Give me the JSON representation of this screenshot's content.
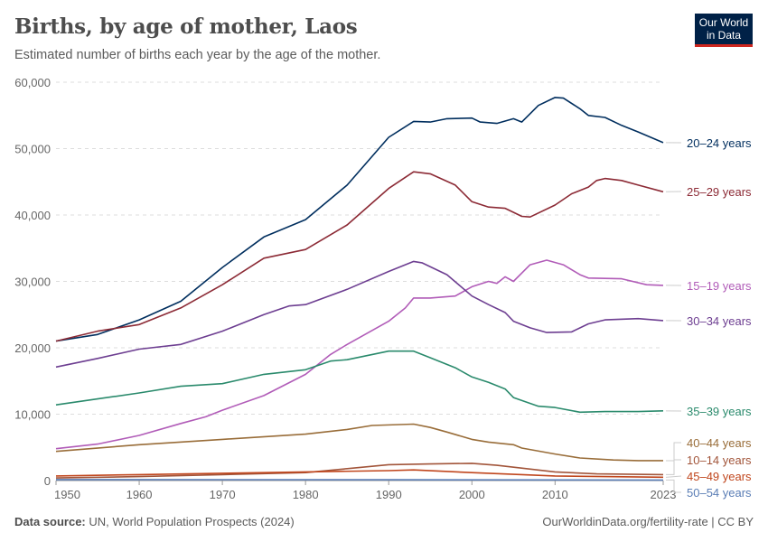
{
  "header": {
    "title": "Births, by age of mother, Laos",
    "subtitle": "Estimated number of births each year by the age of the mother.",
    "logo": "Our World in Data"
  },
  "footer": {
    "source_label": "Data source:",
    "source": "UN, World Population Prospects (2024)",
    "link": "OurWorldinData.org/fertility-rate | CC BY"
  },
  "chart_data": {
    "type": "line",
    "title": "Births, by age of mother, Laos",
    "xlim": [
      1950,
      2023
    ],
    "ylim": [
      0,
      60000
    ],
    "grid": "horizontal dashed",
    "legend": "right end labels",
    "xticks": [
      "1950",
      "1960",
      "1970",
      "1980",
      "1990",
      "2000",
      "2010",
      "2023"
    ],
    "yticks": [
      "0",
      "10,000",
      "20,000",
      "30,000",
      "40,000",
      "50,000",
      "60,000"
    ],
    "series": [
      {
        "name": "20–24 years",
        "color": "#002e5e",
        "points": [
          [
            1950,
            21000
          ],
          [
            1955,
            22000
          ],
          [
            1960,
            24200
          ],
          [
            1965,
            27000
          ],
          [
            1970,
            32100
          ],
          [
            1975,
            36700
          ],
          [
            1980,
            39300
          ],
          [
            1985,
            44500
          ],
          [
            1990,
            51700
          ],
          [
            1993,
            54100
          ],
          [
            1995,
            54000
          ],
          [
            1997,
            54500
          ],
          [
            2000,
            54600
          ],
          [
            2001,
            54000
          ],
          [
            2003,
            53800
          ],
          [
            2005,
            54500
          ],
          [
            2006,
            54000
          ],
          [
            2008,
            56500
          ],
          [
            2010,
            57700
          ],
          [
            2011,
            57600
          ],
          [
            2013,
            56000
          ],
          [
            2014,
            55000
          ],
          [
            2016,
            54700
          ],
          [
            2018,
            53500
          ],
          [
            2020,
            52500
          ],
          [
            2023,
            50900
          ]
        ]
      },
      {
        "name": "25–29 years",
        "color": "#8c2a35",
        "points": [
          [
            1950,
            21000
          ],
          [
            1955,
            22500
          ],
          [
            1960,
            23500
          ],
          [
            1965,
            26000
          ],
          [
            1970,
            29500
          ],
          [
            1975,
            33500
          ],
          [
            1980,
            34800
          ],
          [
            1985,
            38500
          ],
          [
            1990,
            44000
          ],
          [
            1993,
            46500
          ],
          [
            1995,
            46200
          ],
          [
            1998,
            44500
          ],
          [
            2000,
            42000
          ],
          [
            2002,
            41200
          ],
          [
            2004,
            41000
          ],
          [
            2006,
            39800
          ],
          [
            2007,
            39700
          ],
          [
            2010,
            41500
          ],
          [
            2012,
            43200
          ],
          [
            2014,
            44200
          ],
          [
            2015,
            45200
          ],
          [
            2016,
            45500
          ],
          [
            2018,
            45200
          ],
          [
            2020,
            44500
          ],
          [
            2023,
            43500
          ]
        ]
      },
      {
        "name": "15–19 years",
        "color": "#b15cb8",
        "points": [
          [
            1950,
            4800
          ],
          [
            1955,
            5500
          ],
          [
            1960,
            6800
          ],
          [
            1965,
            8600
          ],
          [
            1968,
            9600
          ],
          [
            1970,
            10600
          ],
          [
            1975,
            12800
          ],
          [
            1980,
            16000
          ],
          [
            1983,
            19000
          ],
          [
            1985,
            20500
          ],
          [
            1990,
            24000
          ],
          [
            1992,
            26000
          ],
          [
            1993,
            27500
          ],
          [
            1995,
            27500
          ],
          [
            1998,
            27800
          ],
          [
            2000,
            29200
          ],
          [
            2002,
            30000
          ],
          [
            2003,
            29700
          ],
          [
            2004,
            30700
          ],
          [
            2005,
            30000
          ],
          [
            2007,
            32500
          ],
          [
            2009,
            33200
          ],
          [
            2011,
            32500
          ],
          [
            2013,
            31000
          ],
          [
            2014,
            30500
          ],
          [
            2018,
            30400
          ],
          [
            2021,
            29500
          ],
          [
            2023,
            29400
          ]
        ]
      },
      {
        "name": "30–34 years",
        "color": "#6d3e91",
        "points": [
          [
            1950,
            17100
          ],
          [
            1955,
            18400
          ],
          [
            1960,
            19800
          ],
          [
            1965,
            20500
          ],
          [
            1970,
            22500
          ],
          [
            1975,
            25000
          ],
          [
            1978,
            26300
          ],
          [
            1980,
            26500
          ],
          [
            1985,
            28800
          ],
          [
            1990,
            31500
          ],
          [
            1993,
            33000
          ],
          [
            1994,
            32800
          ],
          [
            1997,
            31000
          ],
          [
            2000,
            27800
          ],
          [
            2002,
            26500
          ],
          [
            2004,
            25300
          ],
          [
            2005,
            24000
          ],
          [
            2007,
            23000
          ],
          [
            2009,
            22300
          ],
          [
            2012,
            22400
          ],
          [
            2014,
            23600
          ],
          [
            2016,
            24200
          ],
          [
            2020,
            24400
          ],
          [
            2023,
            24100
          ]
        ]
      },
      {
        "name": "35–39 years",
        "color": "#2a8a6c",
        "points": [
          [
            1950,
            11400
          ],
          [
            1955,
            12300
          ],
          [
            1960,
            13200
          ],
          [
            1965,
            14200
          ],
          [
            1970,
            14600
          ],
          [
            1975,
            16000
          ],
          [
            1980,
            16700
          ],
          [
            1983,
            18000
          ],
          [
            1985,
            18200
          ],
          [
            1990,
            19500
          ],
          [
            1993,
            19500
          ],
          [
            1995,
            18500
          ],
          [
            1998,
            17000
          ],
          [
            2000,
            15600
          ],
          [
            2002,
            14800
          ],
          [
            2004,
            13800
          ],
          [
            2005,
            12500
          ],
          [
            2008,
            11200
          ],
          [
            2010,
            11000
          ],
          [
            2013,
            10300
          ],
          [
            2016,
            10400
          ],
          [
            2020,
            10400
          ],
          [
            2023,
            10500
          ]
        ]
      },
      {
        "name": "40–44 years",
        "color": "#996d39",
        "points": [
          [
            1950,
            4400
          ],
          [
            1960,
            5400
          ],
          [
            1970,
            6200
          ],
          [
            1980,
            7000
          ],
          [
            1985,
            7700
          ],
          [
            1988,
            8300
          ],
          [
            1993,
            8500
          ],
          [
            1995,
            8000
          ],
          [
            1997,
            7300
          ],
          [
            2000,
            6200
          ],
          [
            2002,
            5800
          ],
          [
            2005,
            5400
          ],
          [
            2006,
            4900
          ],
          [
            2010,
            4000
          ],
          [
            2013,
            3400
          ],
          [
            2017,
            3100
          ],
          [
            2020,
            3000
          ],
          [
            2023,
            3000
          ]
        ]
      },
      {
        "name": "10–14 years",
        "color": "#a2553a",
        "points": [
          [
            1950,
            400
          ],
          [
            1960,
            600
          ],
          [
            1970,
            900
          ],
          [
            1980,
            1200
          ],
          [
            1985,
            1800
          ],
          [
            1990,
            2400
          ],
          [
            1995,
            2500
          ],
          [
            2000,
            2600
          ],
          [
            2003,
            2300
          ],
          [
            2010,
            1300
          ],
          [
            2015,
            1000
          ],
          [
            2023,
            900
          ]
        ]
      },
      {
        "name": "45–49 years",
        "color": "#c0461d",
        "points": [
          [
            1950,
            700
          ],
          [
            1960,
            900
          ],
          [
            1970,
            1100
          ],
          [
            1980,
            1300
          ],
          [
            1990,
            1500
          ],
          [
            1993,
            1600
          ],
          [
            2000,
            1200
          ],
          [
            2010,
            700
          ],
          [
            2023,
            500
          ]
        ]
      },
      {
        "name": "50–54 years",
        "color": "#5a7db5",
        "points": [
          [
            1950,
            150
          ],
          [
            1990,
            120
          ],
          [
            2023,
            80
          ]
        ]
      }
    ]
  }
}
